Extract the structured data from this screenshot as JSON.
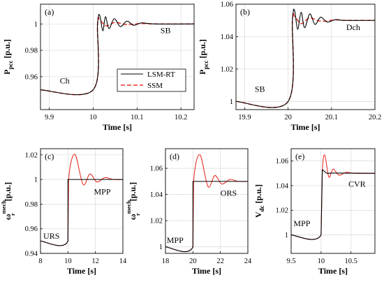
{
  "legend": {
    "entries": [
      {
        "label": "LSM-RT",
        "color": "#000000",
        "dash": "solid"
      },
      {
        "label": "SSM",
        "color": "#e8332a",
        "dash": "dashed"
      }
    ]
  },
  "chart_data": [
    {
      "type": "line",
      "panel": "(a)",
      "xlabel": "Time [s]",
      "ylabel": "P",
      "ylabel_sub": "pcc",
      "ylabel_unit": "[p.u.]",
      "xlim": [
        9.88,
        10.23
      ],
      "ylim": [
        0.935,
        1.015
      ],
      "xticks": [
        9.9,
        10,
        10.1,
        10.2
      ],
      "xtick_labels": [
        "9.9",
        "10",
        "10.1",
        "10.2"
      ],
      "yticks": [
        0.96,
        0.98,
        1.0
      ],
      "ytick_labels": [
        "0.96",
        "0.98",
        "1"
      ],
      "grid": true,
      "legend": "center",
      "annotations": [
        {
          "text": "Ch",
          "x": 9.935,
          "y": 0.955
        },
        {
          "text": "SB",
          "x": 10.165,
          "y": 0.993
        }
      ],
      "step": {
        "t0": 10.0,
        "t1": 10.01,
        "start": 0.95,
        "end": 1.0
      },
      "series": [
        {
          "name": "LSM-RT",
          "color": "#000000",
          "dash": "solid",
          "overshoot": [
            [
              10.015,
              1.0065
            ],
            [
              10.022,
              0.9948
            ],
            [
              10.028,
              1.0055
            ],
            [
              10.036,
              0.9965
            ],
            [
              10.048,
              1.004
            ],
            [
              10.062,
              0.998
            ],
            [
              10.077,
              1.0022
            ],
            [
              10.092,
              0.999
            ],
            [
              10.11,
              1.0008
            ],
            [
              10.14,
              1.0
            ]
          ]
        },
        {
          "name": "SSM",
          "color": "#e8332a",
          "dash": "dashed",
          "overshoot": [
            [
              10.015,
              1.003
            ],
            [
              10.03,
              0.9985
            ],
            [
              10.05,
              1.0012
            ],
            [
              10.075,
              0.9996
            ],
            [
              10.11,
              1.0003
            ],
            [
              10.14,
              1.0
            ]
          ]
        }
      ]
    },
    {
      "type": "line",
      "panel": "(b)",
      "xlabel": "Time [s]",
      "ylabel": "P",
      "ylabel_sub": "pcc",
      "ylabel_unit": "[p.u.]",
      "xlim": [
        19.88,
        20.2
      ],
      "ylim": [
        0.995,
        1.06
      ],
      "xticks": [
        19.9,
        20,
        20.1,
        20.2
      ],
      "xtick_labels": [
        "19.9",
        "20",
        "20.1",
        "20.2"
      ],
      "yticks": [
        1.0,
        1.02,
        1.04,
        1.06
      ],
      "ytick_labels": [
        "1",
        "1.02",
        "1.04",
        "1.06"
      ],
      "grid": true,
      "annotations": [
        {
          "text": "Dch",
          "x": 20.15,
          "y": 1.044
        },
        {
          "text": "SB",
          "x": 19.935,
          "y": 1.006
        }
      ],
      "step": {
        "t0": 20.0,
        "t1": 20.01,
        "start": 1.0,
        "end": 1.05
      },
      "series": [
        {
          "name": "LSM-RT",
          "color": "#000000",
          "dash": "solid",
          "overshoot": [
            [
              20.015,
              1.056
            ],
            [
              20.022,
              1.0445
            ],
            [
              20.03,
              1.055
            ],
            [
              20.038,
              1.0455
            ],
            [
              20.05,
              1.054
            ],
            [
              20.062,
              1.0475
            ],
            [
              20.075,
              1.052
            ],
            [
              20.09,
              1.049
            ],
            [
              20.11,
              1.0505
            ],
            [
              20.13,
              1.05
            ]
          ]
        },
        {
          "name": "SSM",
          "color": "#e8332a",
          "dash": "dashed",
          "overshoot": [
            [
              20.015,
              1.0525
            ],
            [
              20.03,
              1.048
            ],
            [
              20.05,
              1.0515
            ],
            [
              20.075,
              1.0495
            ],
            [
              20.11,
              1.0503
            ],
            [
              20.13,
              1.05
            ]
          ]
        }
      ]
    },
    {
      "type": "line",
      "panel": "(c)",
      "xlabel": "Time [s]",
      "ylabel": "ω",
      "ylabel_sub": "r",
      "ylabel_sup": "mech",
      "ylabel_unit": "[p.u.]",
      "xlim": [
        8,
        14
      ],
      "ylim": [
        0.94,
        1.025
      ],
      "xticks": [
        8,
        10,
        12,
        14
      ],
      "xtick_labels": [
        "8",
        "10",
        "12",
        "14"
      ],
      "yticks": [
        0.94,
        0.96,
        0.98,
        1.0,
        1.02
      ],
      "ytick_labels": [
        "0.94",
        "0.96",
        "0.98",
        "1",
        "1.02"
      ],
      "grid": true,
      "annotations": [
        {
          "text": "MPP",
          "x": 12.5,
          "y": 0.988
        },
        {
          "text": "URS",
          "x": 8.8,
          "y": 0.952
        }
      ],
      "step": {
        "t0": 10.0,
        "t1": 10.05,
        "start": 0.95,
        "end": 1.0
      },
      "series": [
        {
          "name": "LSM-RT",
          "color": "#000000",
          "dash": "solid",
          "jump_at_step": true,
          "overshoot": [
            [
              10.05,
              1.0
            ],
            [
              14.0,
              1.0
            ]
          ]
        },
        {
          "name": "SSM",
          "color": "#e8332a",
          "dash": "solid",
          "overshoot": [
            [
              10.5,
              1.0205
            ],
            [
              11.1,
              0.996
            ],
            [
              11.6,
              1.0045
            ],
            [
              12.1,
              0.998
            ],
            [
              12.7,
              1.0015
            ],
            [
              13.3,
              1.0
            ],
            [
              14.0,
              1.0
            ]
          ]
        }
      ]
    },
    {
      "type": "line",
      "panel": "(d)",
      "xlabel": "Time [s]",
      "ylabel": "ω",
      "ylabel_sub": "r",
      "ylabel_sup": "mech",
      "ylabel_unit": "[p.u.]",
      "xlim": [
        18,
        24
      ],
      "ylim": [
        0.995,
        1.075
      ],
      "xticks": [
        18,
        20,
        22,
        24
      ],
      "xtick_labels": [
        "18",
        "20",
        "22",
        "24"
      ],
      "yticks": [
        1.0,
        1.02,
        1.04,
        1.06
      ],
      "ytick_labels": [
        "1",
        "1.02",
        "1.04",
        "1.06"
      ],
      "grid": true,
      "annotations": [
        {
          "text": "ORS",
          "x": 22.6,
          "y": 1.039
        },
        {
          "text": "MPP",
          "x": 18.7,
          "y": 1.003
        }
      ],
      "step": {
        "t0": 20.0,
        "t1": 20.05,
        "start": 1.0,
        "end": 1.05
      },
      "series": [
        {
          "name": "LSM-RT",
          "color": "#000000",
          "dash": "solid",
          "jump_at_step": true,
          "overshoot": [
            [
              20.05,
              1.05
            ],
            [
              24.0,
              1.05
            ]
          ]
        },
        {
          "name": "SSM",
          "color": "#e8332a",
          "dash": "solid",
          "overshoot": [
            [
              20.5,
              1.0705
            ],
            [
              21.1,
              1.046
            ],
            [
              21.6,
              1.0545
            ],
            [
              22.1,
              1.048
            ],
            [
              22.7,
              1.0515
            ],
            [
              23.3,
              1.05
            ],
            [
              24.0,
              1.05
            ]
          ]
        }
      ]
    },
    {
      "type": "line",
      "panel": "(e)",
      "xlabel": "Time [s]",
      "ylabel": "V",
      "ylabel_sub": "dc",
      "ylabel_unit": "[p.u.]",
      "xlim": [
        9.5,
        10.9
      ],
      "ylim": [
        0.985,
        1.07
      ],
      "xticks": [
        9.5,
        10,
        10.5
      ],
      "xtick_labels": [
        "9.5",
        "10",
        "10.5"
      ],
      "yticks": [
        1.0,
        1.02,
        1.04,
        1.06
      ],
      "ytick_labels": [
        "1",
        "1.02",
        "1.04",
        "1.06"
      ],
      "grid": true,
      "annotations": [
        {
          "text": "CVR",
          "x": 10.6,
          "y": 1.039
        },
        {
          "text": "MPP",
          "x": 9.68,
          "y": 1.007
        }
      ],
      "step": {
        "t0": 10.0,
        "t1": 10.02,
        "start": 1.0,
        "end": 1.05
      },
      "series": [
        {
          "name": "LSM-RT",
          "color": "#000000",
          "dash": "solid",
          "overshoot": [
            [
              10.02,
              1.053
            ],
            [
              10.1,
              1.05
            ],
            [
              10.2,
              1.0502
            ],
            [
              10.9,
              1.05
            ]
          ]
        },
        {
          "name": "SSM",
          "color": "#e8332a",
          "dash": "solid",
          "overshoot": [
            [
              10.06,
              1.065
            ],
            [
              10.13,
              1.047
            ],
            [
              10.2,
              1.0535
            ],
            [
              10.3,
              1.0485
            ],
            [
              10.42,
              1.0508
            ],
            [
              10.55,
              1.05
            ],
            [
              10.9,
              1.05
            ]
          ]
        }
      ]
    }
  ]
}
